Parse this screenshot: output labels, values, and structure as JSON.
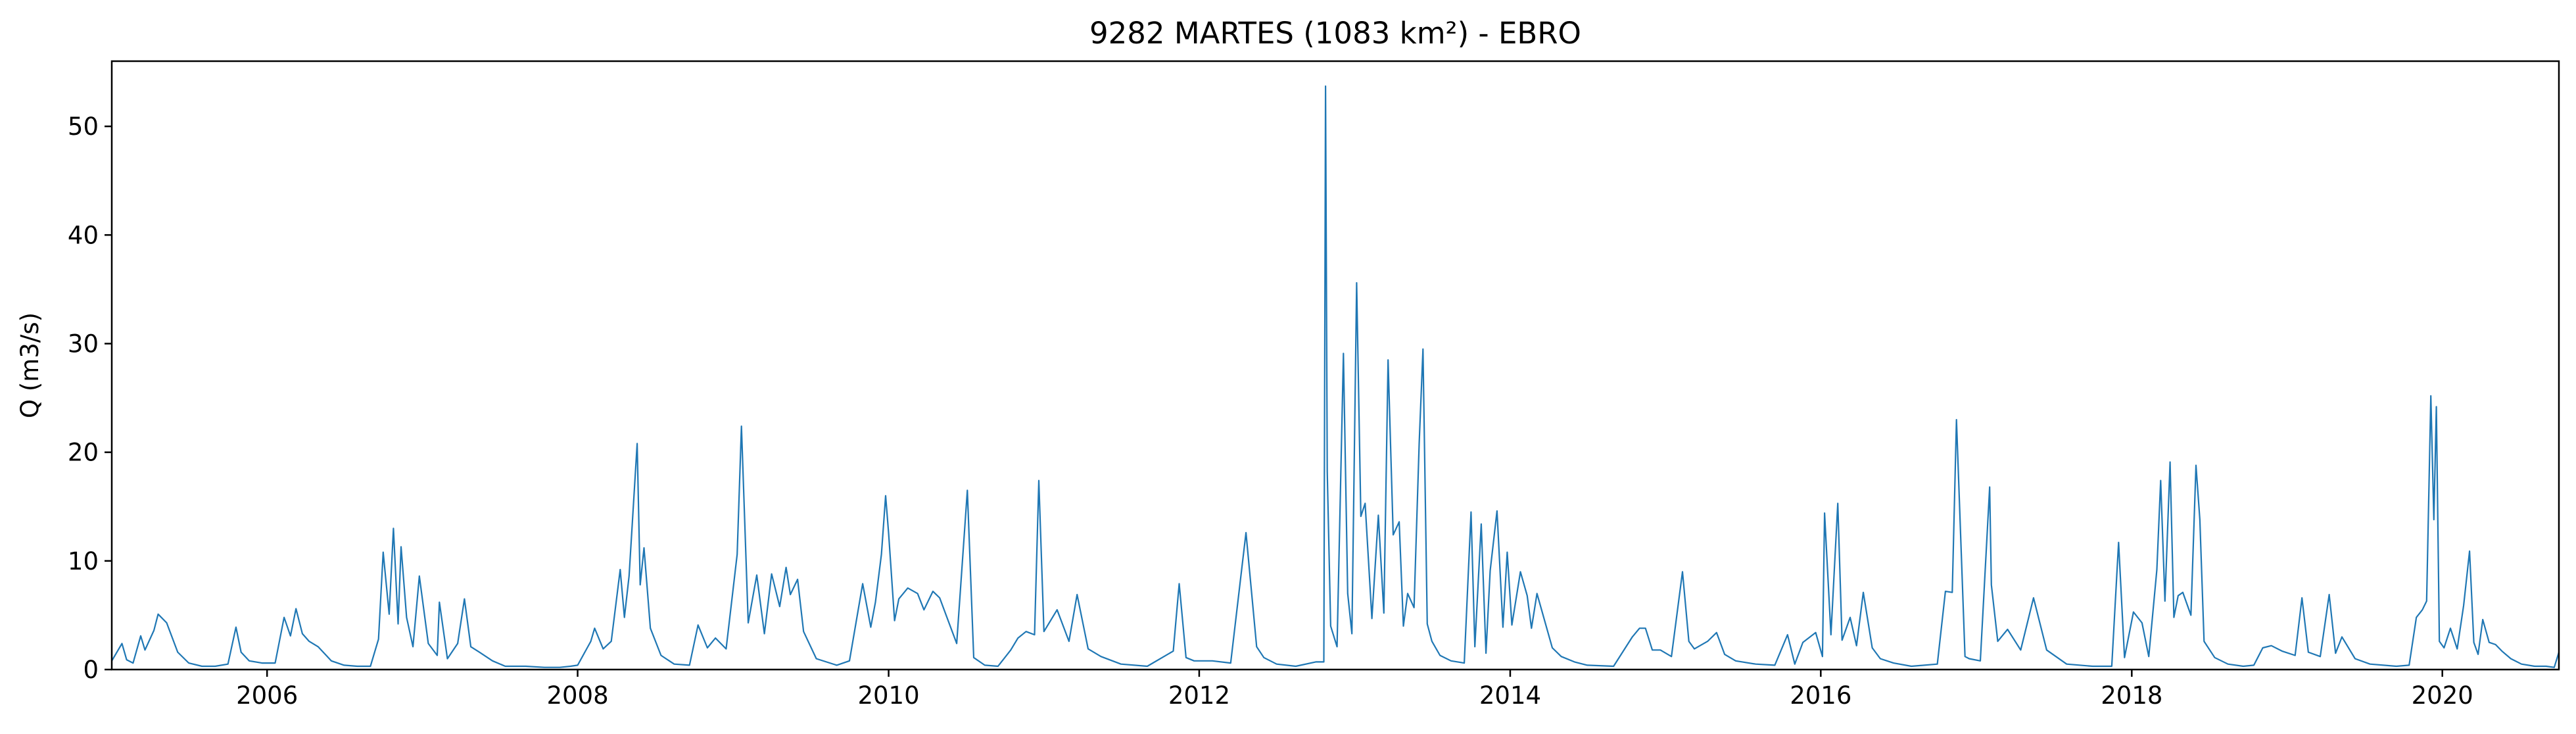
{
  "chart_data": {
    "type": "line",
    "title": "9282 MARTES (1083 km²) - EBRO",
    "xlabel": "",
    "ylabel": "Q (m3/s)",
    "x_axis": "date",
    "xlim": [
      "2005-01-01",
      "2020-10-01"
    ],
    "ylim": [
      0,
      56
    ],
    "grid": false,
    "legend": "none",
    "xticks": [
      "2006",
      "2008",
      "2010",
      "2012",
      "2014",
      "2016",
      "2018",
      "2020"
    ],
    "yticks": [
      "0",
      "10",
      "20",
      "30",
      "40",
      "50"
    ],
    "colors": {
      "series": "#1f77b4",
      "axes": "#000000",
      "background": "#ffffff"
    },
    "series": [
      {
        "name": "",
        "x": [
          "2005-01-01",
          "2005-01-25",
          "2005-02-05",
          "2005-02-20",
          "2005-03-10",
          "2005-03-20",
          "2005-04-10",
          "2005-04-20",
          "2005-05-10",
          "2005-06-05",
          "2005-07-01",
          "2005-08-01",
          "2005-09-01",
          "2005-10-01",
          "2005-10-20",
          "2005-11-01",
          "2005-11-20",
          "2005-12-20",
          "2006-01-20",
          "2006-02-10",
          "2006-02-25",
          "2006-03-10",
          "2006-03-25",
          "2006-04-10",
          "2006-05-01",
          "2006-06-01",
          "2006-07-01",
          "2006-08-01",
          "2006-09-01",
          "2006-09-20",
          "2006-10-01",
          "2006-10-15",
          "2006-10-25",
          "2006-11-05",
          "2006-11-12",
          "2006-11-25",
          "2006-12-10",
          "2006-12-25",
          "2007-01-15",
          "2007-02-05",
          "2007-02-10",
          "2007-03-01",
          "2007-03-25",
          "2007-04-10",
          "2007-04-25",
          "2007-05-15",
          "2007-06-15",
          "2007-07-15",
          "2007-09-01",
          "2007-10-15",
          "2007-11-20",
          "2007-12-15",
          "2008-01-01",
          "2008-02-01",
          "2008-02-10",
          "2008-03-01",
          "2008-03-20",
          "2008-04-10",
          "2008-04-20",
          "2008-05-01",
          "2008-05-20",
          "2008-05-27",
          "2008-06-05",
          "2008-06-20",
          "2008-07-15",
          "2008-08-15",
          "2008-09-20",
          "2008-10-10",
          "2008-11-01",
          "2008-11-20",
          "2008-12-15",
          "2009-01-10",
          "2009-01-20",
          "2009-02-05",
          "2009-02-25",
          "2009-03-15",
          "2009-04-01",
          "2009-04-20",
          "2009-05-05",
          "2009-05-15",
          "2009-06-01",
          "2009-06-15",
          "2009-07-15",
          "2009-09-01",
          "2009-10-01",
          "2009-11-01",
          "2009-11-20",
          "2009-12-01",
          "2009-12-15",
          "2009-12-25",
          "2010-01-01",
          "2010-01-15",
          "2010-01-25",
          "2010-02-15",
          "2010-03-10",
          "2010-03-25",
          "2010-04-15",
          "2010-05-01",
          "2010-05-20",
          "2010-06-10",
          "2010-07-05",
          "2010-07-20",
          "2010-08-15",
          "2010-09-15",
          "2010-10-15",
          "2010-11-01",
          "2010-11-20",
          "2010-12-10",
          "2010-12-20",
          "2011-01-01",
          "2011-02-01",
          "2011-03-01",
          "2011-03-20",
          "2011-04-15",
          "2011-05-15",
          "2011-07-01",
          "2011-09-01",
          "2011-11-01",
          "2011-11-15",
          "2011-12-01",
          "2011-12-20",
          "2012-02-01",
          "2012-03-15",
          "2012-04-20",
          "2012-05-01",
          "2012-05-15",
          "2012-06-01",
          "2012-07-01",
          "2012-08-15",
          "2012-10-01",
          "2012-10-20",
          "2012-10-24",
          "2012-10-28",
          "2012-11-05",
          "2012-11-20",
          "2012-12-05",
          "2012-12-15",
          "2012-12-25",
          "2013-01-05",
          "2013-01-15",
          "2013-01-25",
          "2013-02-10",
          "2013-02-25",
          "2013-03-10",
          "2013-03-20",
          "2013-04-01",
          "2013-04-15",
          "2013-04-25",
          "2013-05-05",
          "2013-05-20",
          "2013-06-01",
          "2013-06-10",
          "2013-06-20",
          "2013-07-01",
          "2013-07-20",
          "2013-08-15",
          "2013-09-15",
          "2013-10-01",
          "2013-10-10",
          "2013-10-25",
          "2013-11-05",
          "2013-11-15",
          "2013-12-01",
          "2013-12-15",
          "2013-12-25",
          "2014-01-05",
          "2014-01-25",
          "2014-02-10",
          "2014-02-20",
          "2014-03-05",
          "2014-03-25",
          "2014-04-10",
          "2014-05-01",
          "2014-06-01",
          "2014-07-01",
          "2014-09-01",
          "2014-10-15",
          "2014-11-01",
          "2014-11-15",
          "2014-12-01",
          "2014-12-20",
          "2015-01-15",
          "2015-02-10",
          "2015-02-25",
          "2015-03-10",
          "2015-04-10",
          "2015-05-01",
          "2015-05-20",
          "2015-06-15",
          "2015-08-01",
          "2015-09-15",
          "2015-10-15",
          "2015-11-01",
          "2015-11-20",
          "2015-12-20",
          "2016-01-05",
          "2016-01-10",
          "2016-01-25",
          "2016-02-10",
          "2016-02-20",
          "2016-03-10",
          "2016-03-25",
          "2016-04-10",
          "2016-05-01",
          "2016-05-20",
          "2016-06-20",
          "2016-08-01",
          "2016-10-01",
          "2016-10-20",
          "2016-11-05",
          "2016-11-15",
          "2016-12-05",
          "2016-12-15",
          "2017-01-10",
          "2017-02-01",
          "2017-02-05",
          "2017-02-20",
          "2017-03-15",
          "2017-04-15",
          "2017-05-15",
          "2017-06-15",
          "2017-08-01",
          "2017-10-01",
          "2017-11-15",
          "2017-12-01",
          "2017-12-15",
          "2018-01-05",
          "2018-01-25",
          "2018-02-10",
          "2018-03-01",
          "2018-03-10",
          "2018-03-20",
          "2018-04-01",
          "2018-04-10",
          "2018-04-20",
          "2018-05-01",
          "2018-05-20",
          "2018-06-01",
          "2018-06-10",
          "2018-06-20",
          "2018-07-15",
          "2018-08-15",
          "2018-09-20",
          "2018-10-15",
          "2018-11-05",
          "2018-11-25",
          "2018-12-20",
          "2019-01-20",
          "2019-02-05",
          "2019-02-20",
          "2019-03-20",
          "2019-04-10",
          "2019-04-25",
          "2019-05-10",
          "2019-06-10",
          "2019-07-15",
          "2019-09-15",
          "2019-10-15",
          "2019-11-01",
          "2019-11-15",
          "2019-11-25",
          "2019-12-05",
          "2019-12-12",
          "2019-12-18",
          "2019-12-25",
          "2020-01-05",
          "2020-01-20",
          "2020-02-05",
          "2020-02-20",
          "2020-03-05",
          "2020-03-15",
          "2020-03-25",
          "2020-04-05",
          "2020-04-20",
          "2020-05-05",
          "2020-05-20",
          "2020-06-10",
          "2020-07-05",
          "2020-08-05",
          "2020-09-01",
          "2020-09-20",
          "2020-10-01"
        ],
        "y": [
          0.8,
          2.4,
          0.9,
          0.6,
          3.1,
          1.8,
          3.6,
          5.1,
          4.3,
          1.6,
          0.6,
          0.3,
          0.3,
          0.5,
          3.9,
          1.6,
          0.8,
          0.6,
          0.6,
          4.8,
          3.1,
          5.6,
          3.3,
          2.6,
          2.1,
          0.8,
          0.4,
          0.3,
          0.3,
          2.8,
          10.8,
          5.1,
          13.0,
          4.2,
          11.3,
          4.8,
          2.1,
          8.6,
          2.4,
          1.3,
          6.2,
          1.0,
          2.4,
          6.5,
          2.1,
          1.6,
          0.8,
          0.3,
          0.3,
          0.2,
          0.2,
          0.3,
          0.4,
          2.6,
          3.8,
          1.9,
          2.6,
          9.2,
          4.8,
          8.6,
          20.8,
          7.8,
          11.2,
          3.8,
          1.3,
          0.5,
          0.4,
          4.1,
          2.0,
          2.9,
          1.9,
          10.6,
          22.4,
          4.3,
          8.7,
          3.3,
          8.8,
          5.8,
          9.4,
          6.9,
          8.3,
          3.5,
          1.0,
          0.4,
          0.8,
          7.9,
          3.9,
          6.2,
          10.6,
          16.0,
          12.5,
          4.5,
          6.5,
          7.5,
          7.0,
          5.5,
          7.2,
          6.6,
          4.6,
          2.4,
          16.5,
          1.1,
          0.4,
          0.3,
          1.8,
          2.9,
          3.5,
          3.2,
          17.4,
          3.5,
          5.5,
          2.6,
          6.9,
          1.9,
          1.2,
          0.5,
          0.3,
          1.7,
          7.9,
          1.1,
          0.8,
          0.8,
          0.6,
          12.6,
          8.0,
          2.1,
          1.1,
          0.5,
          0.3,
          0.7,
          0.7,
          53.7,
          18.2,
          4.0,
          2.1,
          29.1,
          7.0,
          3.3,
          35.6,
          14.1,
          15.3,
          4.7,
          14.2,
          5.2,
          28.5,
          12.4,
          13.6,
          4.0,
          7.0,
          5.7,
          20.8,
          29.5,
          4.2,
          2.6,
          1.3,
          0.8,
          0.6,
          14.5,
          2.1,
          13.4,
          1.5,
          9.1,
          14.6,
          3.9,
          10.8,
          4.1,
          9.0,
          6.8,
          3.8,
          7.0,
          4.2,
          2.0,
          1.2,
          0.7,
          0.4,
          0.3,
          3.0,
          3.8,
          3.8,
          1.8,
          1.8,
          1.2,
          9.0,
          2.6,
          1.9,
          2.6,
          3.4,
          1.4,
          0.8,
          0.5,
          0.4,
          3.2,
          0.5,
          2.5,
          3.4,
          1.2,
          14.4,
          3.2,
          15.3,
          2.7,
          4.8,
          2.2,
          7.1,
          2.0,
          1.0,
          0.6,
          0.3,
          0.5,
          7.2,
          7.1,
          23.0,
          1.2,
          1.0,
          0.8,
          16.8,
          7.8,
          2.6,
          3.7,
          1.8,
          6.6,
          1.8,
          0.5,
          0.3,
          0.3,
          11.7,
          1.1,
          5.3,
          4.3,
          1.2,
          9.2,
          17.4,
          6.3,
          19.1,
          4.8,
          6.8,
          7.1,
          5.0,
          18.8,
          13.8,
          2.6,
          1.1,
          0.5,
          0.3,
          0.4,
          2.0,
          2.2,
          1.7,
          1.3,
          6.6,
          1.6,
          1.2,
          6.9,
          1.5,
          3.0,
          1.0,
          0.5,
          0.3,
          0.4,
          4.8,
          5.5,
          6.3,
          25.2,
          13.8,
          24.2,
          2.6,
          2.0,
          3.8,
          1.9,
          5.9,
          10.9,
          2.5,
          1.4,
          4.6,
          2.5,
          2.3,
          1.7,
          1.0,
          0.5,
          0.3,
          0.3,
          0.2,
          1.6
        ]
      }
    ]
  }
}
